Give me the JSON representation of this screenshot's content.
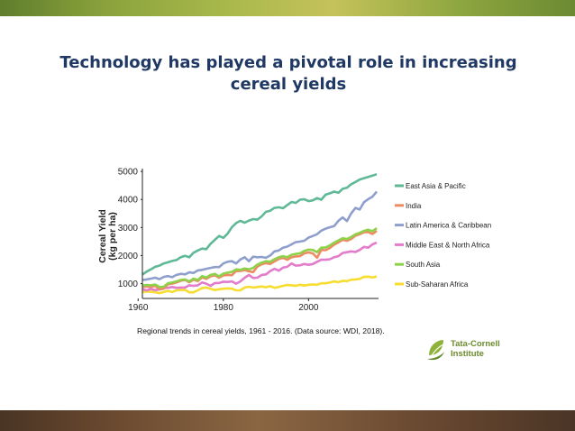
{
  "slide": {
    "title": "Technology has played a pivotal role in increasing cereal yields",
    "caption": "Regional trends in cereal yields, 1961 - 2016. (Data source: WDI, 2018).",
    "logo_line1": "Tata-Cornell",
    "logo_line2": "Institute",
    "title_color": "#1f3864"
  },
  "chart_data": {
    "type": "line",
    "title": "",
    "xlabel": "",
    "ylabel": "Cereal Yield (kg per ha)",
    "xlim": [
      1961,
      2016
    ],
    "ylim": [
      600,
      5100
    ],
    "xticks": [
      1960,
      1980,
      2000
    ],
    "yticks": [
      1000,
      2000,
      3000,
      4000,
      5000
    ],
    "legend_position": "right",
    "grid": false,
    "x": [
      1961,
      1962,
      1963,
      1964,
      1965,
      1966,
      1967,
      1968,
      1969,
      1970,
      1971,
      1972,
      1973,
      1974,
      1975,
      1976,
      1977,
      1978,
      1979,
      1980,
      1981,
      1982,
      1983,
      1984,
      1985,
      1986,
      1987,
      1988,
      1989,
      1990,
      1991,
      1992,
      1993,
      1994,
      1995,
      1996,
      1997,
      1998,
      1999,
      2000,
      2001,
      2002,
      2003,
      2004,
      2005,
      2006,
      2007,
      2008,
      2009,
      2010,
      2011,
      2012,
      2013,
      2014,
      2015,
      2016
    ],
    "series": [
      {
        "name": "East Asia & Pacific",
        "color": "#5fb896",
        "values": [
          1320,
          1430,
          1510,
          1600,
          1640,
          1720,
          1760,
          1810,
          1840,
          1940,
          1990,
          1940,
          2100,
          2180,
          2250,
          2230,
          2420,
          2560,
          2700,
          2630,
          2780,
          3010,
          3160,
          3240,
          3170,
          3250,
          3300,
          3280,
          3400,
          3560,
          3600,
          3700,
          3720,
          3690,
          3800,
          3910,
          3880,
          3990,
          4010,
          3940,
          3970,
          4050,
          3990,
          4170,
          4220,
          4280,
          4240,
          4380,
          4420,
          4540,
          4620,
          4710,
          4760,
          4800,
          4850,
          4900
        ]
      },
      {
        "name": "India",
        "color": "#ec8c63",
        "values": [
          880,
          900,
          880,
          920,
          800,
          820,
          980,
          1000,
          1040,
          1100,
          1130,
          1050,
          1140,
          1090,
          1220,
          1170,
          1260,
          1300,
          1210,
          1290,
          1310,
          1300,
          1450,
          1450,
          1480,
          1440,
          1410,
          1610,
          1690,
          1730,
          1700,
          1790,
          1880,
          1920,
          1850,
          1940,
          1970,
          1980,
          2080,
          2110,
          2080,
          1920,
          2200,
          2190,
          2270,
          2390,
          2470,
          2560,
          2530,
          2590,
          2710,
          2760,
          2830,
          2840,
          2770,
          2880
        ]
      },
      {
        "name": "Latin America & Caribbean",
        "color": "#8f9fcd",
        "values": [
          1130,
          1150,
          1180,
          1210,
          1160,
          1240,
          1270,
          1230,
          1310,
          1350,
          1330,
          1400,
          1380,
          1470,
          1490,
          1530,
          1560,
          1590,
          1590,
          1720,
          1780,
          1800,
          1720,
          1860,
          1940,
          1800,
          1960,
          1940,
          1950,
          1920,
          2000,
          2150,
          2180,
          2280,
          2320,
          2400,
          2480,
          2500,
          2530,
          2640,
          2700,
          2760,
          2890,
          2960,
          3010,
          3050,
          3240,
          3360,
          3230,
          3500,
          3700,
          3640,
          3900,
          4010,
          4100,
          4280
        ]
      },
      {
        "name": "Middle East & North Africa",
        "color": "#e27ccb",
        "values": [
          800,
          760,
          810,
          770,
          790,
          840,
          850,
          880,
          850,
          860,
          860,
          940,
          920,
          940,
          1040,
          1000,
          920,
          1020,
          1020,
          1070,
          1060,
          1080,
          1000,
          1080,
          1210,
          1310,
          1200,
          1210,
          1310,
          1330,
          1450,
          1530,
          1460,
          1570,
          1600,
          1720,
          1640,
          1650,
          1700,
          1670,
          1700,
          1780,
          1850,
          1850,
          1870,
          1940,
          1980,
          2090,
          2120,
          2150,
          2130,
          2200,
          2310,
          2280,
          2400,
          2460
        ]
      },
      {
        "name": "South Asia",
        "color": "#8ed24b",
        "values": [
          930,
          950,
          940,
          970,
          880,
          890,
          1010,
          1040,
          1080,
          1130,
          1150,
          1080,
          1180,
          1130,
          1270,
          1220,
          1310,
          1350,
          1260,
          1360,
          1390,
          1420,
          1510,
          1490,
          1540,
          1510,
          1560,
          1680,
          1750,
          1800,
          1780,
          1870,
          1940,
          1980,
          1940,
          2030,
          2060,
          2080,
          2170,
          2210,
          2200,
          2120,
          2280,
          2290,
          2360,
          2460,
          2540,
          2620,
          2590,
          2660,
          2760,
          2810,
          2880,
          2920,
          2870,
          2980
        ]
      },
      {
        "name": "Sub-Saharan Africa",
        "color": "#f7dd2f",
        "values": [
          700,
          720,
          710,
          690,
          660,
          700,
          740,
          700,
          760,
          770,
          780,
          690,
          690,
          760,
          840,
          860,
          820,
          770,
          800,
          820,
          830,
          820,
          760,
          760,
          860,
          890,
          860,
          880,
          900,
          870,
          910,
          850,
          880,
          920,
          950,
          940,
          920,
          960,
          930,
          960,
          970,
          960,
          1010,
          1010,
          1040,
          1080,
          1050,
          1100,
          1090,
          1140,
          1150,
          1170,
          1240,
          1250,
          1220,
          1260
        ]
      }
    ]
  }
}
